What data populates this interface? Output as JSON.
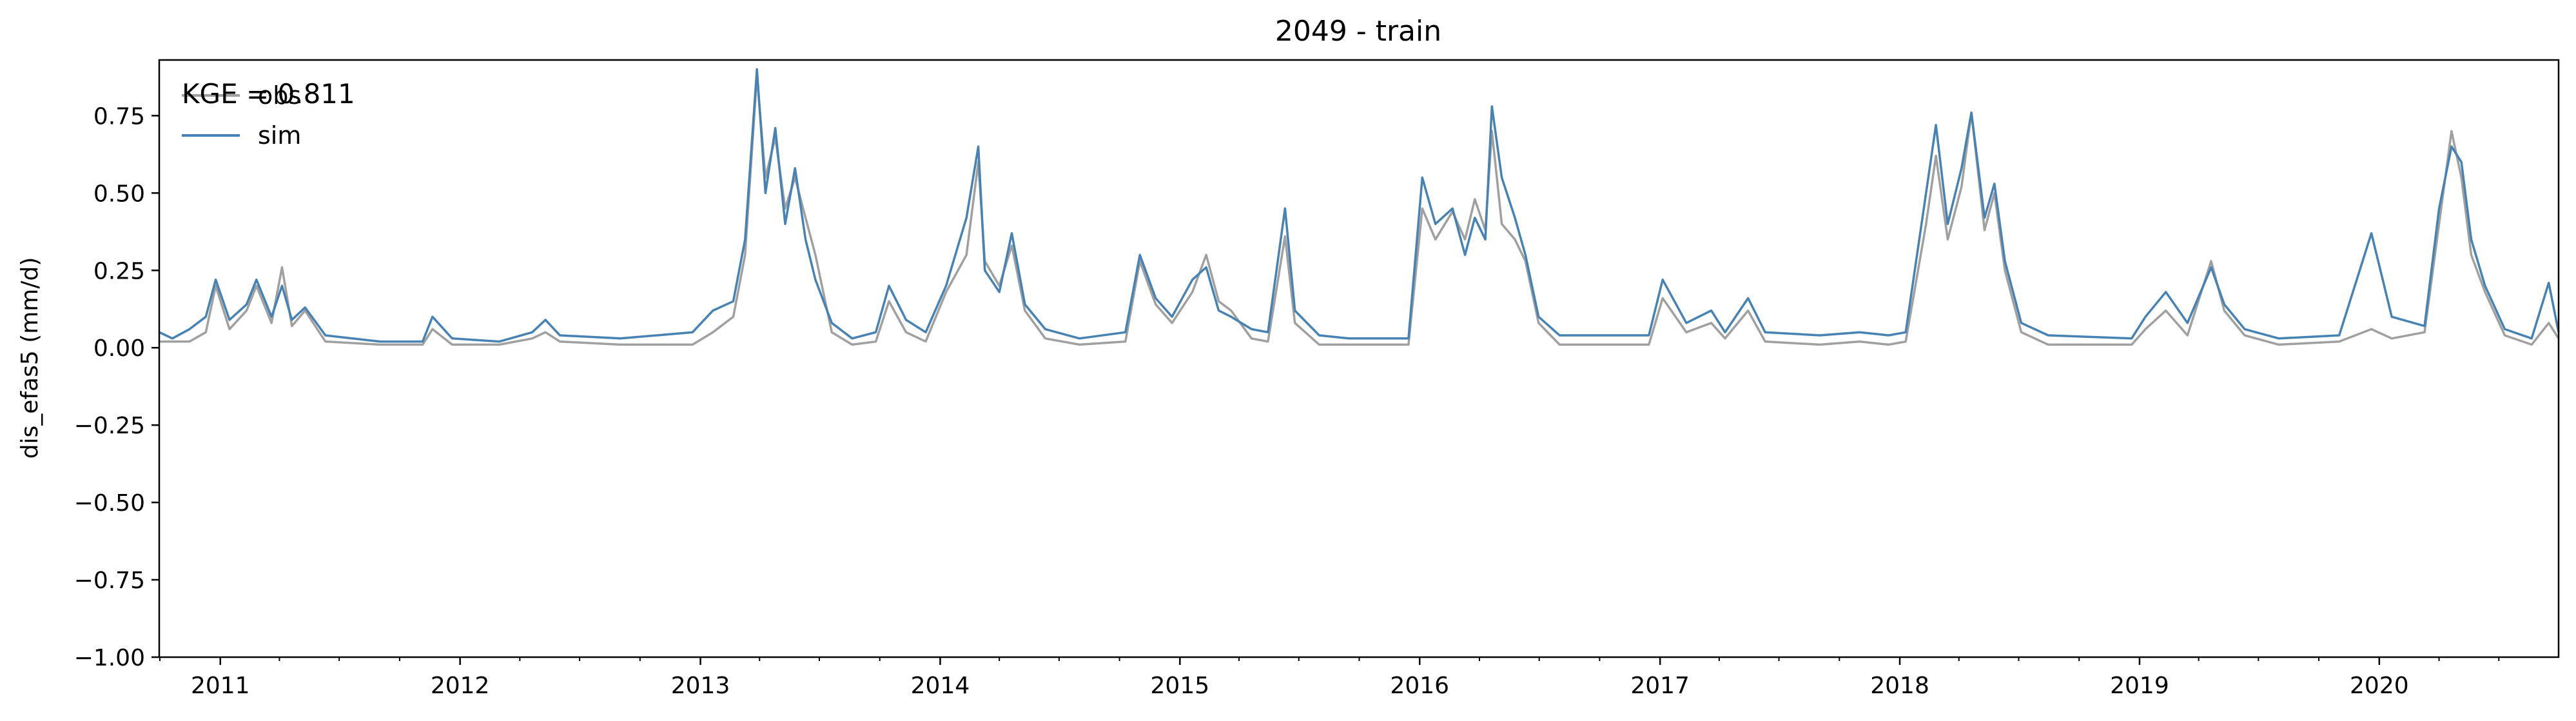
{
  "chart_data": {
    "type": "line",
    "title": "2049 - train",
    "xlabel": "",
    "ylabel": "dis_efas5 (mm/d)",
    "xlim": [
      "2010-09-30",
      "2020-09-30"
    ],
    "ylim": [
      -1.0,
      0.93
    ],
    "yticks": [
      -1.0,
      -0.75,
      -0.5,
      -0.25,
      0.0,
      0.25,
      0.5,
      0.75
    ],
    "ytick_labels": [
      "−1.00",
      "−0.75",
      "−0.50",
      "−0.25",
      "0.00",
      "0.25",
      "0.50",
      "0.75"
    ],
    "xticks": [
      "2011-01-01",
      "2012-01-01",
      "2013-01-01",
      "2014-01-01",
      "2015-01-01",
      "2016-01-01",
      "2017-01-01",
      "2018-01-01",
      "2019-01-01",
      "2020-01-01"
    ],
    "xtick_labels": [
      "2011",
      "2012",
      "2013",
      "2014",
      "2015",
      "2016",
      "2017",
      "2018",
      "2019",
      "2020"
    ],
    "grid": false,
    "legend_position": "top-left",
    "annotation": "KGE = 0.811",
    "series": [
      {
        "name": "obs",
        "color": "#a0a0a0",
        "points": [
          [
            "2010-09-30",
            0.02
          ],
          [
            "2010-11-15",
            0.02
          ],
          [
            "2010-12-10",
            0.05
          ],
          [
            "2010-12-25",
            0.2
          ],
          [
            "2011-01-15",
            0.06
          ],
          [
            "2011-02-10",
            0.12
          ],
          [
            "2011-02-25",
            0.2
          ],
          [
            "2011-03-20",
            0.08
          ],
          [
            "2011-04-05",
            0.26
          ],
          [
            "2011-04-20",
            0.07
          ],
          [
            "2011-05-10",
            0.12
          ],
          [
            "2011-06-10",
            0.02
          ],
          [
            "2011-09-01",
            0.01
          ],
          [
            "2011-11-05",
            0.01
          ],
          [
            "2011-11-20",
            0.06
          ],
          [
            "2011-12-20",
            0.01
          ],
          [
            "2012-03-01",
            0.01
          ],
          [
            "2012-04-20",
            0.03
          ],
          [
            "2012-05-10",
            0.05
          ],
          [
            "2012-06-01",
            0.02
          ],
          [
            "2012-09-01",
            0.01
          ],
          [
            "2012-12-20",
            0.01
          ],
          [
            "2013-01-20",
            0.05
          ],
          [
            "2013-02-20",
            0.1
          ],
          [
            "2013-03-10",
            0.3
          ],
          [
            "2013-03-28",
            0.88
          ],
          [
            "2013-04-10",
            0.55
          ],
          [
            "2013-04-25",
            0.68
          ],
          [
            "2013-05-10",
            0.45
          ],
          [
            "2013-05-25",
            0.55
          ],
          [
            "2013-06-10",
            0.42
          ],
          [
            "2013-06-25",
            0.3
          ],
          [
            "2013-07-20",
            0.05
          ],
          [
            "2013-08-20",
            0.01
          ],
          [
            "2013-09-25",
            0.02
          ],
          [
            "2013-10-15",
            0.15
          ],
          [
            "2013-11-10",
            0.05
          ],
          [
            "2013-12-10",
            0.02
          ],
          [
            "2014-01-10",
            0.18
          ],
          [
            "2014-02-10",
            0.3
          ],
          [
            "2014-02-28",
            0.6
          ],
          [
            "2014-03-10",
            0.28
          ],
          [
            "2014-04-01",
            0.2
          ],
          [
            "2014-04-20",
            0.33
          ],
          [
            "2014-05-10",
            0.12
          ],
          [
            "2014-06-10",
            0.03
          ],
          [
            "2014-08-01",
            0.01
          ],
          [
            "2014-10-10",
            0.02
          ],
          [
            "2014-11-01",
            0.28
          ],
          [
            "2014-11-25",
            0.14
          ],
          [
            "2014-12-20",
            0.08
          ],
          [
            "2015-01-20",
            0.18
          ],
          [
            "2015-02-10",
            0.3
          ],
          [
            "2015-03-01",
            0.15
          ],
          [
            "2015-03-20",
            0.12
          ],
          [
            "2015-04-20",
            0.03
          ],
          [
            "2015-05-15",
            0.02
          ],
          [
            "2015-06-10",
            0.36
          ],
          [
            "2015-06-25",
            0.08
          ],
          [
            "2015-08-01",
            0.01
          ],
          [
            "2015-09-15",
            0.01
          ],
          [
            "2015-12-15",
            0.01
          ],
          [
            "2016-01-05",
            0.45
          ],
          [
            "2016-01-25",
            0.35
          ],
          [
            "2016-02-20",
            0.44
          ],
          [
            "2016-03-10",
            0.35
          ],
          [
            "2016-03-25",
            0.48
          ],
          [
            "2016-04-10",
            0.38
          ],
          [
            "2016-04-20",
            0.7
          ],
          [
            "2016-05-05",
            0.4
          ],
          [
            "2016-05-25",
            0.35
          ],
          [
            "2016-06-10",
            0.28
          ],
          [
            "2016-06-30",
            0.08
          ],
          [
            "2016-08-01",
            0.01
          ],
          [
            "2016-12-15",
            0.01
          ],
          [
            "2017-01-05",
            0.16
          ],
          [
            "2017-02-10",
            0.05
          ],
          [
            "2017-03-20",
            0.08
          ],
          [
            "2017-04-10",
            0.03
          ],
          [
            "2017-05-15",
            0.12
          ],
          [
            "2017-06-10",
            0.02
          ],
          [
            "2017-09-01",
            0.01
          ],
          [
            "2017-11-01",
            0.02
          ],
          [
            "2017-12-15",
            0.01
          ],
          [
            "2018-01-10",
            0.02
          ],
          [
            "2018-02-10",
            0.4
          ],
          [
            "2018-02-25",
            0.62
          ],
          [
            "2018-03-15",
            0.35
          ],
          [
            "2018-04-05",
            0.52
          ],
          [
            "2018-04-20",
            0.76
          ],
          [
            "2018-05-10",
            0.38
          ],
          [
            "2018-05-25",
            0.5
          ],
          [
            "2018-06-10",
            0.25
          ],
          [
            "2018-07-05",
            0.05
          ],
          [
            "2018-08-15",
            0.01
          ],
          [
            "2018-12-20",
            0.01
          ],
          [
            "2019-01-10",
            0.06
          ],
          [
            "2019-02-10",
            0.12
          ],
          [
            "2019-03-15",
            0.04
          ],
          [
            "2019-04-20",
            0.28
          ],
          [
            "2019-05-10",
            0.12
          ],
          [
            "2019-06-10",
            0.04
          ],
          [
            "2019-08-01",
            0.01
          ],
          [
            "2019-11-01",
            0.02
          ],
          [
            "2019-12-20",
            0.06
          ],
          [
            "2020-01-20",
            0.03
          ],
          [
            "2020-03-10",
            0.05
          ],
          [
            "2020-04-01",
            0.4
          ],
          [
            "2020-04-20",
            0.7
          ],
          [
            "2020-05-05",
            0.55
          ],
          [
            "2020-05-20",
            0.3
          ],
          [
            "2020-06-10",
            0.18
          ],
          [
            "2020-07-10",
            0.04
          ],
          [
            "2020-08-20",
            0.01
          ],
          [
            "2020-09-15",
            0.08
          ],
          [
            "2020-09-30",
            0.03
          ]
        ]
      },
      {
        "name": "sim",
        "color": "#4682b4",
        "points": [
          [
            "2010-09-30",
            0.05
          ],
          [
            "2010-10-20",
            0.03
          ],
          [
            "2010-11-15",
            0.06
          ],
          [
            "2010-12-10",
            0.1
          ],
          [
            "2010-12-25",
            0.22
          ],
          [
            "2011-01-15",
            0.09
          ],
          [
            "2011-02-10",
            0.14
          ],
          [
            "2011-02-25",
            0.22
          ],
          [
            "2011-03-20",
            0.1
          ],
          [
            "2011-04-05",
            0.2
          ],
          [
            "2011-04-20",
            0.09
          ],
          [
            "2011-05-10",
            0.13
          ],
          [
            "2011-06-10",
            0.04
          ],
          [
            "2011-09-01",
            0.02
          ],
          [
            "2011-11-05",
            0.02
          ],
          [
            "2011-11-20",
            0.1
          ],
          [
            "2011-12-20",
            0.03
          ],
          [
            "2012-03-01",
            0.02
          ],
          [
            "2012-04-20",
            0.05
          ],
          [
            "2012-05-10",
            0.09
          ],
          [
            "2012-06-01",
            0.04
          ],
          [
            "2012-09-01",
            0.03
          ],
          [
            "2012-12-20",
            0.05
          ],
          [
            "2013-01-20",
            0.12
          ],
          [
            "2013-02-20",
            0.15
          ],
          [
            "2013-03-10",
            0.35
          ],
          [
            "2013-03-28",
            0.9
          ],
          [
            "2013-04-10",
            0.5
          ],
          [
            "2013-04-25",
            0.71
          ],
          [
            "2013-05-10",
            0.4
          ],
          [
            "2013-05-25",
            0.58
          ],
          [
            "2013-06-10",
            0.35
          ],
          [
            "2013-06-25",
            0.22
          ],
          [
            "2013-07-20",
            0.08
          ],
          [
            "2013-08-20",
            0.03
          ],
          [
            "2013-09-25",
            0.05
          ],
          [
            "2013-10-15",
            0.2
          ],
          [
            "2013-11-10",
            0.09
          ],
          [
            "2013-12-10",
            0.05
          ],
          [
            "2014-01-10",
            0.2
          ],
          [
            "2014-02-10",
            0.42
          ],
          [
            "2014-02-28",
            0.65
          ],
          [
            "2014-03-10",
            0.25
          ],
          [
            "2014-04-01",
            0.18
          ],
          [
            "2014-04-20",
            0.37
          ],
          [
            "2014-05-10",
            0.14
          ],
          [
            "2014-06-10",
            0.06
          ],
          [
            "2014-08-01",
            0.03
          ],
          [
            "2014-10-10",
            0.05
          ],
          [
            "2014-11-01",
            0.3
          ],
          [
            "2014-11-25",
            0.16
          ],
          [
            "2014-12-20",
            0.1
          ],
          [
            "2015-01-20",
            0.22
          ],
          [
            "2015-02-10",
            0.26
          ],
          [
            "2015-03-01",
            0.12
          ],
          [
            "2015-03-20",
            0.1
          ],
          [
            "2015-04-20",
            0.06
          ],
          [
            "2015-05-15",
            0.05
          ],
          [
            "2015-06-10",
            0.45
          ],
          [
            "2015-06-25",
            0.12
          ],
          [
            "2015-08-01",
            0.04
          ],
          [
            "2015-09-15",
            0.03
          ],
          [
            "2015-12-15",
            0.03
          ],
          [
            "2016-01-05",
            0.55
          ],
          [
            "2016-01-25",
            0.4
          ],
          [
            "2016-02-20",
            0.45
          ],
          [
            "2016-03-10",
            0.3
          ],
          [
            "2016-03-25",
            0.42
          ],
          [
            "2016-04-10",
            0.35
          ],
          [
            "2016-04-20",
            0.78
          ],
          [
            "2016-05-05",
            0.55
          ],
          [
            "2016-05-25",
            0.42
          ],
          [
            "2016-06-10",
            0.3
          ],
          [
            "2016-06-30",
            0.1
          ],
          [
            "2016-08-01",
            0.04
          ],
          [
            "2016-12-15",
            0.04
          ],
          [
            "2017-01-05",
            0.22
          ],
          [
            "2017-02-10",
            0.08
          ],
          [
            "2017-03-20",
            0.12
          ],
          [
            "2017-04-10",
            0.05
          ],
          [
            "2017-05-15",
            0.16
          ],
          [
            "2017-06-10",
            0.05
          ],
          [
            "2017-09-01",
            0.04
          ],
          [
            "2017-11-01",
            0.05
          ],
          [
            "2017-12-15",
            0.04
          ],
          [
            "2018-01-10",
            0.05
          ],
          [
            "2018-02-10",
            0.5
          ],
          [
            "2018-02-25",
            0.72
          ],
          [
            "2018-03-15",
            0.4
          ],
          [
            "2018-04-05",
            0.58
          ],
          [
            "2018-04-20",
            0.76
          ],
          [
            "2018-05-10",
            0.42
          ],
          [
            "2018-05-25",
            0.53
          ],
          [
            "2018-06-10",
            0.28
          ],
          [
            "2018-07-05",
            0.08
          ],
          [
            "2018-08-15",
            0.04
          ],
          [
            "2018-12-20",
            0.03
          ],
          [
            "2019-01-10",
            0.1
          ],
          [
            "2019-02-10",
            0.18
          ],
          [
            "2019-03-15",
            0.08
          ],
          [
            "2019-04-20",
            0.26
          ],
          [
            "2019-05-10",
            0.14
          ],
          [
            "2019-06-10",
            0.06
          ],
          [
            "2019-08-01",
            0.03
          ],
          [
            "2019-11-01",
            0.04
          ],
          [
            "2019-12-20",
            0.37
          ],
          [
            "2020-01-20",
            0.1
          ],
          [
            "2020-03-10",
            0.07
          ],
          [
            "2020-04-01",
            0.45
          ],
          [
            "2020-04-20",
            0.65
          ],
          [
            "2020-05-05",
            0.6
          ],
          [
            "2020-05-20",
            0.35
          ],
          [
            "2020-06-10",
            0.2
          ],
          [
            "2020-07-10",
            0.06
          ],
          [
            "2020-08-20",
            0.03
          ],
          [
            "2020-09-15",
            0.21
          ],
          [
            "2020-09-30",
            0.05
          ]
        ]
      }
    ]
  }
}
